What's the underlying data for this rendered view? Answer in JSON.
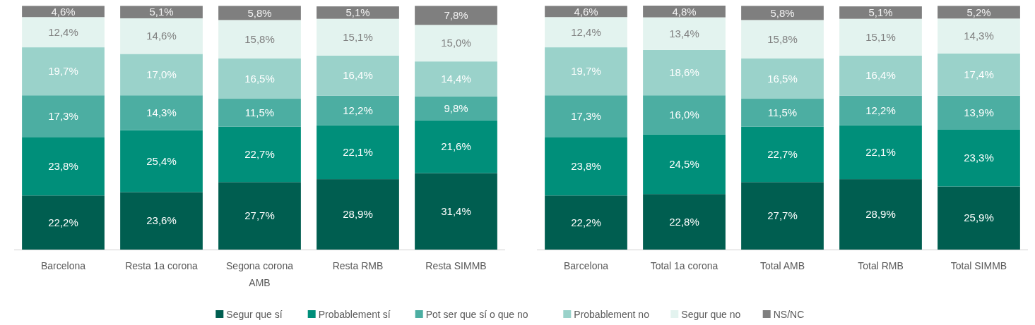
{
  "chart_data": [
    {
      "type": "bar",
      "stacked": true,
      "categories": [
        "Barcelona",
        "Resta 1a corona",
        "Segona corona AMB",
        "Resta RMB",
        "Resta SIMMB"
      ],
      "series": [
        {
          "color": "#005e50",
          "values": [
            22.2,
            23.6,
            27.7,
            28.9,
            31.4
          ],
          "value_labels": [
            "22,2%",
            "23,6%",
            "27,7%",
            "28,9%",
            "31,4%"
          ]
        },
        {
          "color": "#008f7a",
          "values": [
            23.8,
            25.4,
            22.7,
            22.1,
            21.6
          ],
          "value_labels": [
            "23,8%",
            "25,4%",
            "22,7%",
            "22,1%",
            "21,6%"
          ]
        },
        {
          "color": "#4caea2",
          "values": [
            17.3,
            14.3,
            11.5,
            12.2,
            9.8
          ],
          "value_labels": [
            "17,3%",
            "14,3%",
            "11,5%",
            "12,2%",
            "9,8%"
          ]
        },
        {
          "color": "#9ad2ca",
          "values": [
            19.7,
            17.0,
            16.5,
            16.4,
            14.4
          ],
          "value_labels": [
            "19,7%",
            "17,0%",
            "16,5%",
            "16,4%",
            "14,4%"
          ]
        },
        {
          "color": "#e3f3ef",
          "values": [
            12.4,
            14.6,
            15.8,
            15.1,
            15.0
          ],
          "value_labels": [
            "12,4%",
            "14,6%",
            "15,8%",
            "15,1%",
            "15,0%"
          ]
        },
        {
          "color": "#7f7f7f",
          "values": [
            4.6,
            5.1,
            5.8,
            5.1,
            7.8
          ],
          "value_labels": [
            "4,6%",
            "5,1%",
            "5,8%",
            "5,1%",
            "7,8%"
          ]
        }
      ]
    },
    {
      "type": "bar",
      "stacked": true,
      "legend": "bottom",
      "categories": [
        "Barcelona",
        "Total 1a corona",
        "Total AMB",
        "Total RMB",
        "Total SIMMB"
      ],
      "series": [
        {
          "name": "Segur que sí",
          "color": "#005e50",
          "values": [
            22.2,
            22.8,
            27.7,
            28.9,
            25.9
          ],
          "value_labels": [
            "22,2%",
            "22,8%",
            "27,7%",
            "28,9%",
            "25,9%"
          ]
        },
        {
          "name": "Probablement sí",
          "color": "#008f7a",
          "values": [
            23.8,
            24.5,
            22.7,
            22.1,
            23.3
          ],
          "value_labels": [
            "23,8%",
            "24,5%",
            "22,7%",
            "22,1%",
            "23,3%"
          ]
        },
        {
          "name": "Pot ser que sí o que no",
          "color": "#4caea2",
          "values": [
            17.3,
            16.0,
            11.5,
            12.2,
            13.9
          ],
          "value_labels": [
            "17,3%",
            "16,0%",
            "11,5%",
            "12,2%",
            "13,9%"
          ]
        },
        {
          "name": "Probablement no",
          "color": "#9ad2ca",
          "values": [
            19.7,
            18.6,
            16.5,
            16.4,
            17.4
          ],
          "value_labels": [
            "19,7%",
            "18,6%",
            "16,5%",
            "16,4%",
            "17,4%"
          ]
        },
        {
          "name": "Segur que no",
          "color": "#e3f3ef",
          "values": [
            12.4,
            13.4,
            15.8,
            15.1,
            14.3
          ],
          "value_labels": [
            "12,4%",
            "13,4%",
            "15,8%",
            "15,1%",
            "14,3%"
          ]
        },
        {
          "name": "NS/NC",
          "color": "#7f7f7f",
          "values": [
            4.6,
            4.8,
            5.8,
            5.1,
            5.2
          ],
          "value_labels": [
            "4,6%",
            "4,8%",
            "5,8%",
            "5,1%",
            "5,2%"
          ]
        }
      ]
    }
  ]
}
